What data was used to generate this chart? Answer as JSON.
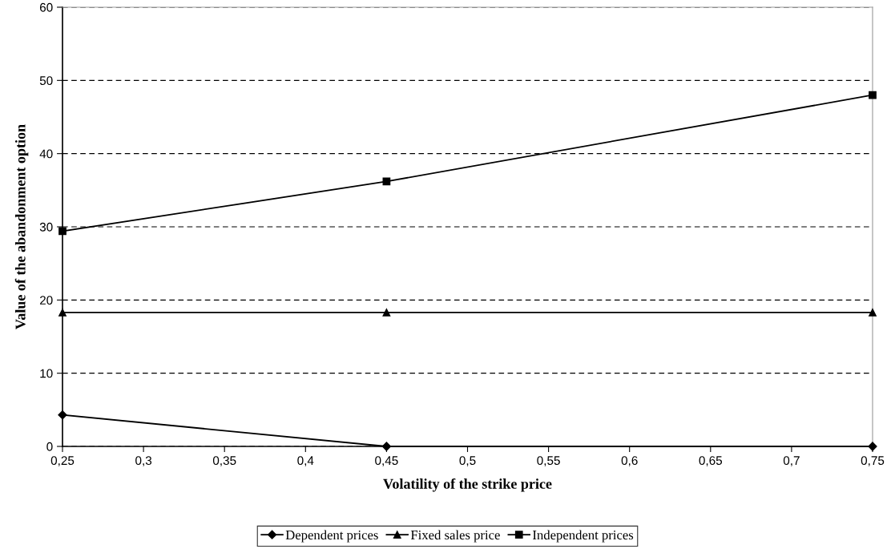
{
  "chart_data": {
    "type": "line",
    "xlabel": "Volatility of the strike price",
    "ylabel": "Value of the abandonment option",
    "x": [
      0.25,
      0.45,
      0.75
    ],
    "series": [
      {
        "name": "Dependent prices",
        "color": "#000000",
        "marker": "diamond",
        "values": [
          4.3,
          0,
          0
        ]
      },
      {
        "name": "Fixed sales price",
        "color": "#000000",
        "marker": "triangle",
        "values": [
          18.3,
          18.3,
          18.3
        ]
      },
      {
        "name": "Independent prices",
        "color": "#000000",
        "marker": "square",
        "values": [
          29.4,
          36.2,
          48.0
        ]
      }
    ],
    "xlim": [
      0.25,
      0.75
    ],
    "xticks": [
      {
        "value": 0.25,
        "label": "0,25"
      },
      {
        "value": 0.3,
        "label": "0,3"
      },
      {
        "value": 0.35,
        "label": "0,35"
      },
      {
        "value": 0.4,
        "label": "0,4"
      },
      {
        "value": 0.45,
        "label": "0,45"
      },
      {
        "value": 0.5,
        "label": "0,5"
      },
      {
        "value": 0.55,
        "label": "0,55"
      },
      {
        "value": 0.6,
        "label": "0,6"
      },
      {
        "value": 0.65,
        "label": "0,65"
      },
      {
        "value": 0.7,
        "label": "0,7"
      },
      {
        "value": 0.75,
        "label": "0,75"
      }
    ],
    "ylim": [
      0,
      60
    ],
    "yticks": [
      0,
      10,
      20,
      30,
      40,
      50,
      60
    ],
    "grid": "y",
    "legend": "bottom",
    "line_style": "solid"
  }
}
